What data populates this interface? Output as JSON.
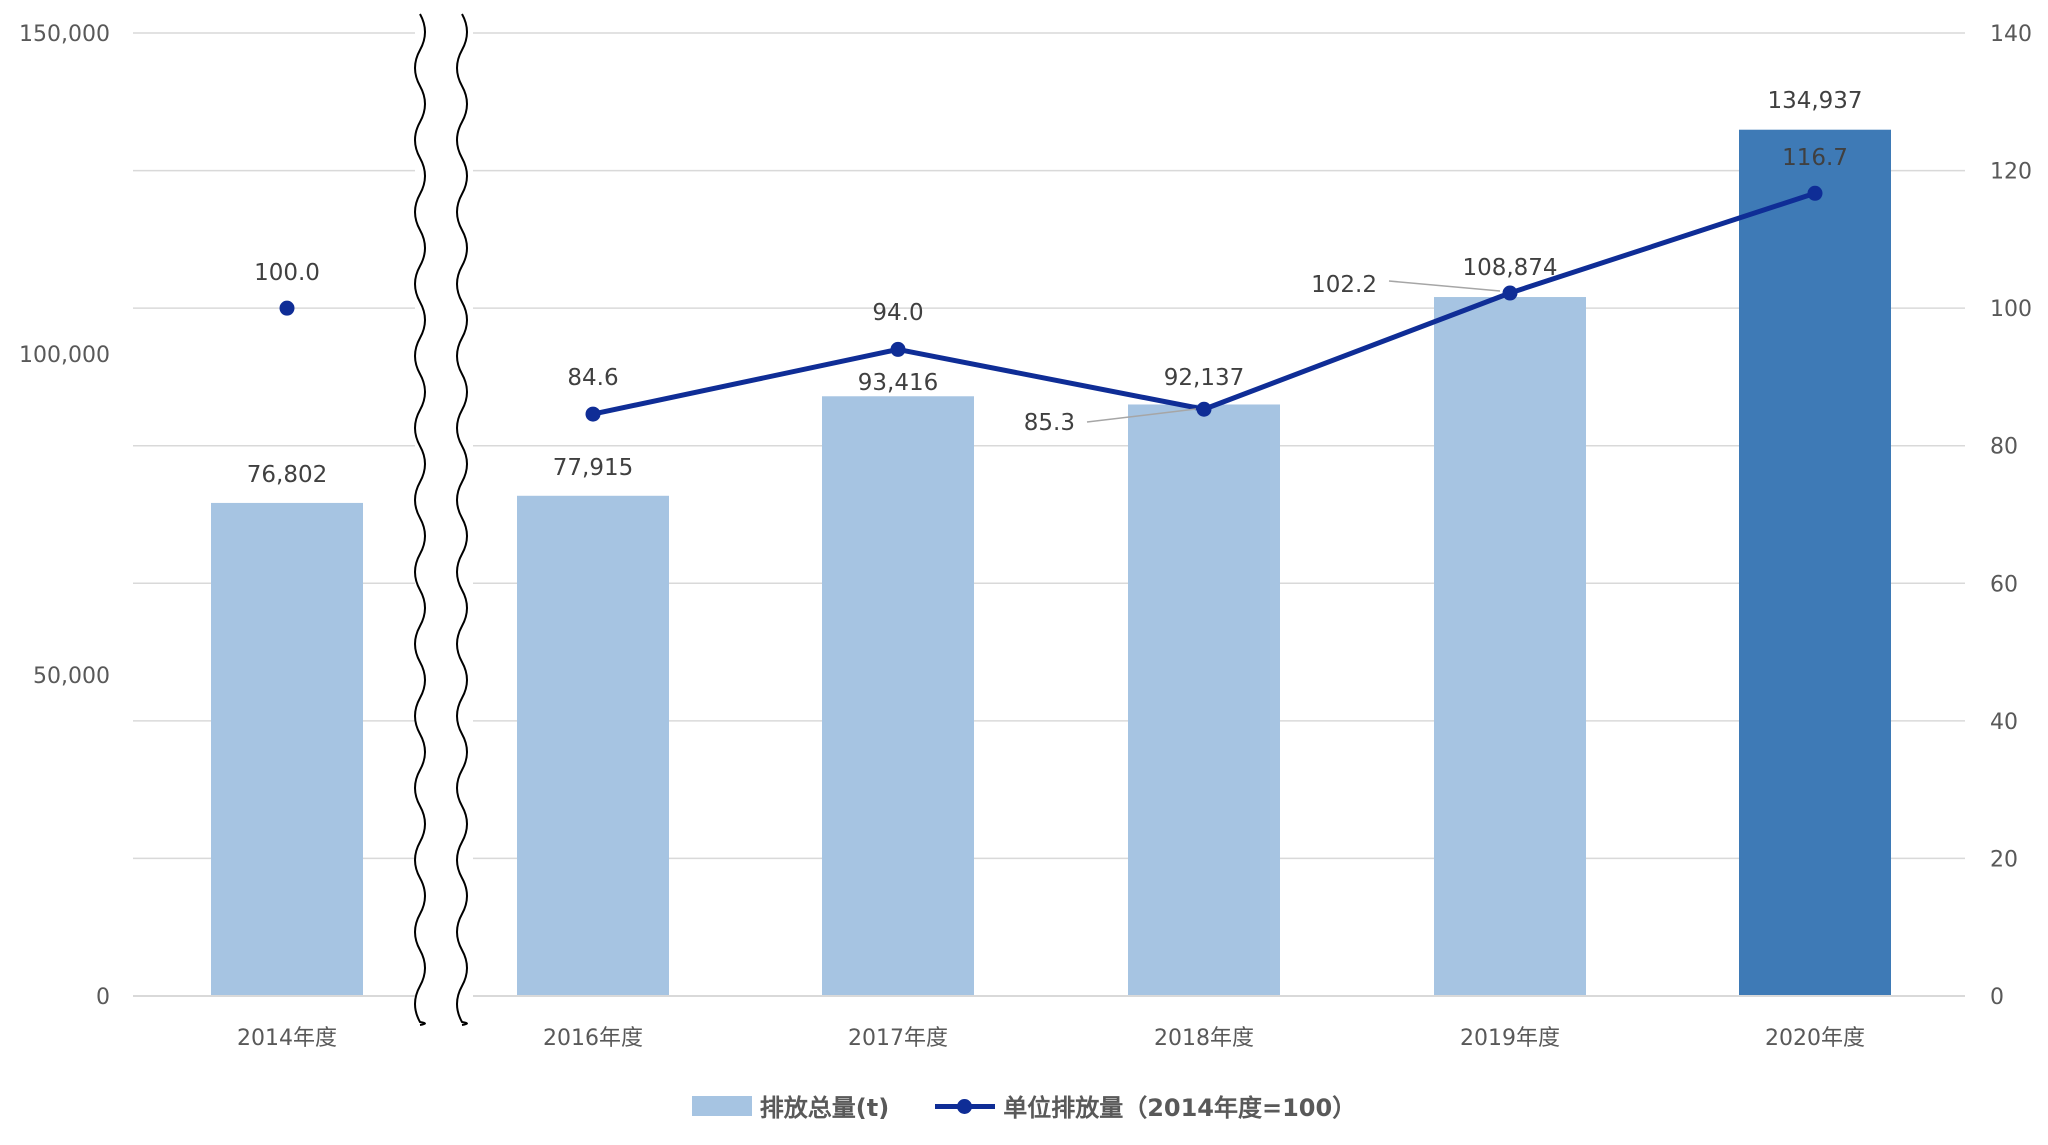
{
  "chart_data": {
    "type": "bar",
    "categories": [
      "2014年度",
      "2016年度",
      "2017年度",
      "2018年度",
      "2019年度",
      "2020年度"
    ],
    "series": [
      {
        "name": "排放总量(t)",
        "type": "bar",
        "axis": "left",
        "values": [
          76802,
          77915,
          93416,
          92137,
          108874,
          134937
        ],
        "labels": [
          "76,802",
          "77,915",
          "93,416",
          "92,137",
          "108,874",
          "134,937"
        ],
        "colors": [
          "#a6c4e2",
          "#a6c4e2",
          "#a6c4e2",
          "#a6c4e2",
          "#a6c4e2",
          "#3e7ab6"
        ]
      },
      {
        "name": "单位排放量（2014年度=100）",
        "type": "line",
        "axis": "right",
        "values": [
          100.0,
          84.6,
          94.0,
          85.3,
          102.2,
          116.7
        ],
        "labels": [
          "100.0",
          "84.6",
          "94.0",
          "85.3",
          "102.2",
          "116.7"
        ],
        "color": "#0f2d96"
      }
    ],
    "y_left": {
      "ylim": [
        0,
        150000
      ],
      "ticks": [
        "0",
        "50,000",
        "100,000",
        "150,000"
      ]
    },
    "y_right": {
      "ylim": [
        0,
        140
      ],
      "ticks": [
        "0",
        "20",
        "40",
        "60",
        "80",
        "100",
        "120",
        "140"
      ]
    },
    "axis_break": "between 2014年度 and 2016年度",
    "grid": true,
    "legend_position": "bottom"
  }
}
